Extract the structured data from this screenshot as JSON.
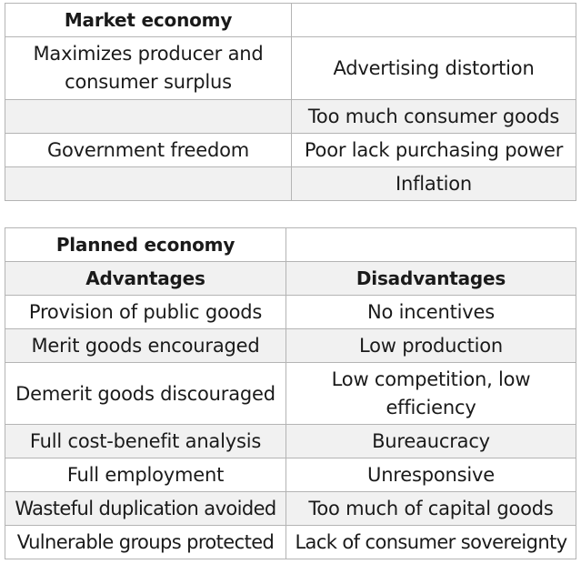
{
  "market_table": {
    "title": "Market economy",
    "rows": [
      [
        "Maximizes producer and consumer surplus",
        "Advertising distortion"
      ],
      [
        "",
        "Too much consumer goods"
      ],
      [
        "Government freedom",
        "Poor lack purchasing power"
      ],
      [
        "",
        "Inflation"
      ]
    ]
  },
  "planned_table": {
    "title": "Planned economy",
    "header": [
      "Advantages",
      "Disadvantages"
    ],
    "rows": [
      [
        "Provision of public goods",
        "No incentives"
      ],
      [
        "Merit goods encouraged",
        "Low production"
      ],
      [
        "Demerit goods discouraged",
        "Low competition, low efficiency"
      ],
      [
        "Full cost-benefit analysis",
        "Bureaucracy"
      ],
      [
        "Full employment",
        "Unresponsive"
      ],
      [
        "Wasteful duplication avoided",
        "Too much of capital goods"
      ],
      [
        "Vulnerable groups protected",
        "Lack of consumer sovereignty"
      ]
    ]
  }
}
